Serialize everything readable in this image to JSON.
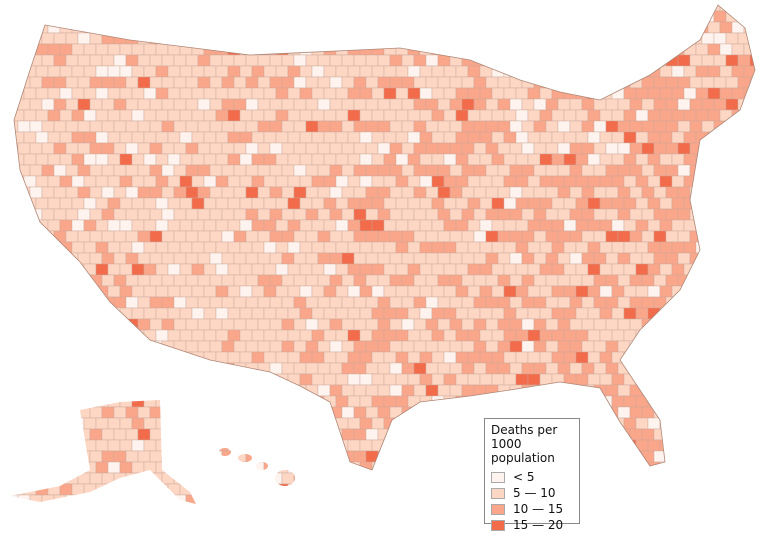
{
  "legend": {
    "title": "Deaths per 1000 population",
    "items": [
      {
        "label": "< 5",
        "color": "#fef3ee"
      },
      {
        "label": "5 — 10",
        "color": "#fdd6c4"
      },
      {
        "label": "10 — 15",
        "color": "#faa68a"
      },
      {
        "label": "15 — 20",
        "color": "#f26c4c"
      }
    ]
  }
}
